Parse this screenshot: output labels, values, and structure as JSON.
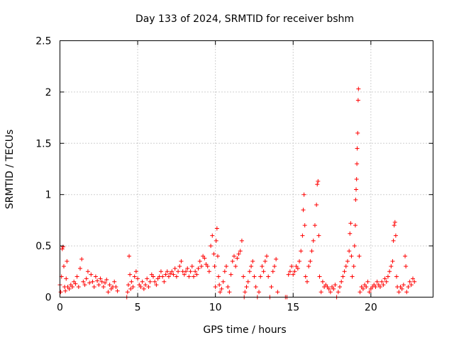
{
  "chart_data": {
    "type": "scatter",
    "title": "Day 133 of 2024, SRMTID for receiver bshm",
    "xlabel": "GPS time / hours",
    "ylabel": "SRMTID / TECUs",
    "xlim": [
      0,
      24
    ],
    "ylim": [
      0,
      2.5
    ],
    "xticks": [
      0,
      5,
      10,
      15,
      20
    ],
    "xtick_labels": [
      "0",
      "5",
      "10",
      "15",
      "20"
    ],
    "yticks": [
      0,
      0.5,
      1,
      1.5,
      2,
      2.5
    ],
    "ytick_labels": [
      "0",
      "0.5",
      "1",
      "1.5",
      "2",
      "2.5"
    ],
    "grid": true,
    "marker": "+",
    "color": "#ff0000",
    "series": [
      {
        "name": "SRMTID",
        "points": [
          [
            0.0,
            0.12
          ],
          [
            0.05,
            0.05
          ],
          [
            0.1,
            0.2
          ],
          [
            0.15,
            0.47
          ],
          [
            0.2,
            0.49
          ],
          [
            0.25,
            0.3
          ],
          [
            0.3,
            0.1
          ],
          [
            0.35,
            0.06
          ],
          [
            0.4,
            0.18
          ],
          [
            0.45,
            0.35
          ],
          [
            0.5,
            0.1
          ],
          [
            0.6,
            0.08
          ],
          [
            0.7,
            0.12
          ],
          [
            0.8,
            0.1
          ],
          [
            0.9,
            0.15
          ],
          [
            1.0,
            0.13
          ],
          [
            1.1,
            0.2
          ],
          [
            1.2,
            0.1
          ],
          [
            1.3,
            0.28
          ],
          [
            1.4,
            0.37
          ],
          [
            1.5,
            0.15
          ],
          [
            1.6,
            0.12
          ],
          [
            1.7,
            0.18
          ],
          [
            1.8,
            0.25
          ],
          [
            1.9,
            0.14
          ],
          [
            2.0,
            0.22
          ],
          [
            2.1,
            0.15
          ],
          [
            2.2,
            0.1
          ],
          [
            2.3,
            0.2
          ],
          [
            2.4,
            0.16
          ],
          [
            2.5,
            0.12
          ],
          [
            2.6,
            0.18
          ],
          [
            2.7,
            0.15
          ],
          [
            2.8,
            0.1
          ],
          [
            2.9,
            0.14
          ],
          [
            3.0,
            0.17
          ],
          [
            3.1,
            0.05
          ],
          [
            3.2,
            0.12
          ],
          [
            3.3,
            0.08
          ],
          [
            3.4,
            0.1
          ],
          [
            3.5,
            0.15
          ],
          [
            3.6,
            0.1
          ],
          [
            3.7,
            0.06
          ],
          [
            4.3,
            0.0
          ],
          [
            4.35,
            0.05
          ],
          [
            4.4,
            0.12
          ],
          [
            4.45,
            0.4
          ],
          [
            4.5,
            0.22
          ],
          [
            4.55,
            0.08
          ],
          [
            4.6,
            0.15
          ],
          [
            4.7,
            0.1
          ],
          [
            4.8,
            0.2
          ],
          [
            4.9,
            0.25
          ],
          [
            5.0,
            0.18
          ],
          [
            5.1,
            0.12
          ],
          [
            5.2,
            0.1
          ],
          [
            5.3,
            0.15
          ],
          [
            5.4,
            0.08
          ],
          [
            5.5,
            0.12
          ],
          [
            5.6,
            0.18
          ],
          [
            5.7,
            0.1
          ],
          [
            5.8,
            0.15
          ],
          [
            5.9,
            0.22
          ],
          [
            6.0,
            0.2
          ],
          [
            6.1,
            0.15
          ],
          [
            6.2,
            0.12
          ],
          [
            6.3,
            0.18
          ],
          [
            6.4,
            0.2
          ],
          [
            6.5,
            0.25
          ],
          [
            6.6,
            0.2
          ],
          [
            6.7,
            0.15
          ],
          [
            6.8,
            0.22
          ],
          [
            6.9,
            0.25
          ],
          [
            7.0,
            0.2
          ],
          [
            7.1,
            0.23
          ],
          [
            7.2,
            0.25
          ],
          [
            7.3,
            0.22
          ],
          [
            7.4,
            0.28
          ],
          [
            7.5,
            0.2
          ],
          [
            7.6,
            0.25
          ],
          [
            7.7,
            0.3
          ],
          [
            7.8,
            0.35
          ],
          [
            7.9,
            0.25
          ],
          [
            8.0,
            0.22
          ],
          [
            8.1,
            0.25
          ],
          [
            8.2,
            0.28
          ],
          [
            8.3,
            0.2
          ],
          [
            8.4,
            0.25
          ],
          [
            8.5,
            0.3
          ],
          [
            8.6,
            0.2
          ],
          [
            8.7,
            0.25
          ],
          [
            8.8,
            0.22
          ],
          [
            8.9,
            0.28
          ],
          [
            9.0,
            0.35
          ],
          [
            9.1,
            0.3
          ],
          [
            9.2,
            0.4
          ],
          [
            9.3,
            0.38
          ],
          [
            9.4,
            0.32
          ],
          [
            9.5,
            0.3
          ],
          [
            9.6,
            0.25
          ],
          [
            9.7,
            0.5
          ],
          [
            9.8,
            0.6
          ],
          [
            9.9,
            0.42
          ],
          [
            9.95,
            0.3
          ],
          [
            10.0,
            0.1
          ],
          [
            10.05,
            0.55
          ],
          [
            10.1,
            0.67
          ],
          [
            10.15,
            0.4
          ],
          [
            10.2,
            0.2
          ],
          [
            10.25,
            0.12
          ],
          [
            10.3,
            0.05
          ],
          [
            10.4,
            0.08
          ],
          [
            10.5,
            0.15
          ],
          [
            10.6,
            0.25
          ],
          [
            10.7,
            0.3
          ],
          [
            10.8,
            0.1
          ],
          [
            10.9,
            0.05
          ],
          [
            11.0,
            0.22
          ],
          [
            11.1,
            0.35
          ],
          [
            11.2,
            0.4
          ],
          [
            11.3,
            0.3
          ],
          [
            11.4,
            0.38
          ],
          [
            11.5,
            0.42
          ],
          [
            11.6,
            0.45
          ],
          [
            11.7,
            0.55
          ],
          [
            11.8,
            0.2
          ],
          [
            11.85,
            0.0
          ],
          [
            11.9,
            0.05
          ],
          [
            12.0,
            0.1
          ],
          [
            12.1,
            0.15
          ],
          [
            12.2,
            0.25
          ],
          [
            12.3,
            0.3
          ],
          [
            12.4,
            0.35
          ],
          [
            12.5,
            0.2
          ],
          [
            12.6,
            0.1
          ],
          [
            12.7,
            0.0
          ],
          [
            12.8,
            0.05
          ],
          [
            12.9,
            0.2
          ],
          [
            13.0,
            0.3
          ],
          [
            13.1,
            0.25
          ],
          [
            13.2,
            0.35
          ],
          [
            13.3,
            0.4
          ],
          [
            13.4,
            0.2
          ],
          [
            13.5,
            0.0
          ],
          [
            13.6,
            0.1
          ],
          [
            13.7,
            0.25
          ],
          [
            13.8,
            0.3
          ],
          [
            13.9,
            0.37
          ],
          [
            14.0,
            0.05
          ],
          [
            14.5,
            0.0
          ],
          [
            14.6,
            0.0
          ],
          [
            14.7,
            0.22
          ],
          [
            14.8,
            0.25
          ],
          [
            14.9,
            0.3
          ],
          [
            15.0,
            0.22
          ],
          [
            15.1,
            0.25
          ],
          [
            15.2,
            0.3
          ],
          [
            15.3,
            0.28
          ],
          [
            15.4,
            0.35
          ],
          [
            15.5,
            0.45
          ],
          [
            15.6,
            0.6
          ],
          [
            15.65,
            0.85
          ],
          [
            15.7,
            1.0
          ],
          [
            15.75,
            0.7
          ],
          [
            15.8,
            0.2
          ],
          [
            15.9,
            0.15
          ],
          [
            16.0,
            0.3
          ],
          [
            16.1,
            0.35
          ],
          [
            16.2,
            0.45
          ],
          [
            16.3,
            0.55
          ],
          [
            16.4,
            0.7
          ],
          [
            16.5,
            0.9
          ],
          [
            16.55,
            1.1
          ],
          [
            16.6,
            1.13
          ],
          [
            16.65,
            0.6
          ],
          [
            16.7,
            0.2
          ],
          [
            16.8,
            0.05
          ],
          [
            16.9,
            0.15
          ],
          [
            17.0,
            0.1
          ],
          [
            17.1,
            0.12
          ],
          [
            17.2,
            0.1
          ],
          [
            17.3,
            0.08
          ],
          [
            17.4,
            0.05
          ],
          [
            17.5,
            0.1
          ],
          [
            17.6,
            0.08
          ],
          [
            17.7,
            0.12
          ],
          [
            17.8,
            0.0
          ],
          [
            17.9,
            0.05
          ],
          [
            18.0,
            0.1
          ],
          [
            18.1,
            0.15
          ],
          [
            18.2,
            0.2
          ],
          [
            18.3,
            0.25
          ],
          [
            18.4,
            0.3
          ],
          [
            18.5,
            0.35
          ],
          [
            18.6,
            0.45
          ],
          [
            18.65,
            0.62
          ],
          [
            18.7,
            0.72
          ],
          [
            18.75,
            0.4
          ],
          [
            18.8,
            0.2
          ],
          [
            18.9,
            0.3
          ],
          [
            18.95,
            0.5
          ],
          [
            19.0,
            0.7
          ],
          [
            19.02,
            0.95
          ],
          [
            19.05,
            1.05
          ],
          [
            19.08,
            1.15
          ],
          [
            19.1,
            1.3
          ],
          [
            19.12,
            1.45
          ],
          [
            19.15,
            1.6
          ],
          [
            19.18,
            1.92
          ],
          [
            19.2,
            2.03
          ],
          [
            19.25,
            0.4
          ],
          [
            19.3,
            0.05
          ],
          [
            19.4,
            0.1
          ],
          [
            19.5,
            0.08
          ],
          [
            19.6,
            0.12
          ],
          [
            19.7,
            0.1
          ],
          [
            19.8,
            0.15
          ],
          [
            19.9,
            0.05
          ],
          [
            20.0,
            0.08
          ],
          [
            20.1,
            0.1
          ],
          [
            20.2,
            0.12
          ],
          [
            20.3,
            0.1
          ],
          [
            20.4,
            0.15
          ],
          [
            20.5,
            0.12
          ],
          [
            20.6,
            0.1
          ],
          [
            20.7,
            0.15
          ],
          [
            20.8,
            0.12
          ],
          [
            20.9,
            0.18
          ],
          [
            21.0,
            0.15
          ],
          [
            21.1,
            0.2
          ],
          [
            21.2,
            0.25
          ],
          [
            21.3,
            0.3
          ],
          [
            21.4,
            0.35
          ],
          [
            21.45,
            0.55
          ],
          [
            21.5,
            0.7
          ],
          [
            21.55,
            0.73
          ],
          [
            21.6,
            0.6
          ],
          [
            21.65,
            0.2
          ],
          [
            21.7,
            0.1
          ],
          [
            21.8,
            0.05
          ],
          [
            21.9,
            0.1
          ],
          [
            22.0,
            0.08
          ],
          [
            22.1,
            0.12
          ],
          [
            22.2,
            0.4
          ],
          [
            22.25,
            0.3
          ],
          [
            22.3,
            0.05
          ],
          [
            22.4,
            0.1
          ],
          [
            22.5,
            0.15
          ],
          [
            22.6,
            0.12
          ],
          [
            22.7,
            0.18
          ],
          [
            22.8,
            0.15
          ]
        ]
      }
    ]
  }
}
